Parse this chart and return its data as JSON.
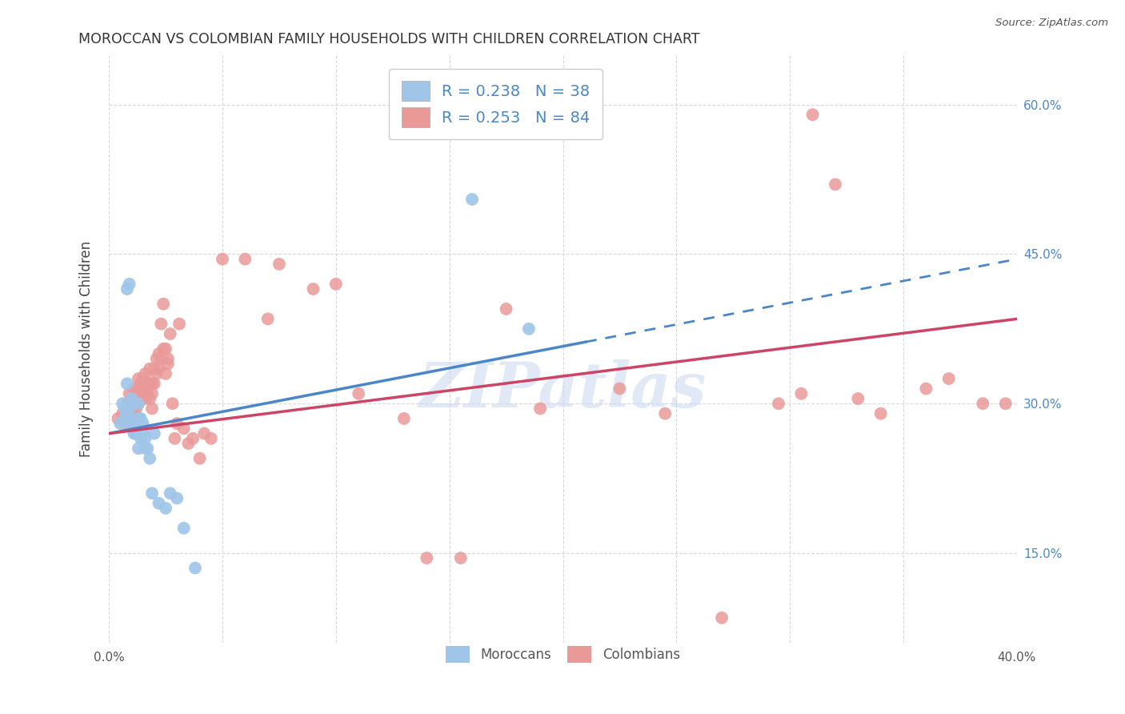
{
  "title": "MOROCCAN VS COLOMBIAN FAMILY HOUSEHOLDS WITH CHILDREN CORRELATION CHART",
  "source": "Source: ZipAtlas.com",
  "ylabel": "Family Households with Children",
  "xlabel": "",
  "xlim": [
    0.0,
    0.4
  ],
  "ylim": [
    0.06,
    0.65
  ],
  "yticks": [
    0.15,
    0.3,
    0.45,
    0.6
  ],
  "ytick_labels": [
    "15.0%",
    "30.0%",
    "45.0%",
    "60.0%"
  ],
  "background_color": "#ffffff",
  "grid_color": "#d8d8d8",
  "blue_color": "#9fc5e8",
  "pink_color": "#ea9999",
  "trendline_blue": "#4a86c8",
  "trendline_pink": "#cc4466",
  "legend_R_blue": "R = 0.238",
  "legend_N_blue": "N = 38",
  "legend_R_pink": "R = 0.253",
  "legend_N_pink": "N = 84",
  "watermark": "ZIPatlas",
  "trendline_blue_x0": 0.0,
  "trendline_blue_y0": 0.27,
  "trendline_blue_x1": 0.4,
  "trendline_blue_y1": 0.445,
  "trendline_blue_split": 0.21,
  "trendline_pink_x0": 0.0,
  "trendline_pink_y0": 0.27,
  "trendline_pink_x1": 0.4,
  "trendline_pink_y1": 0.385,
  "moroccan_x": [
    0.005,
    0.006,
    0.007,
    0.007,
    0.008,
    0.008,
    0.009,
    0.009,
    0.009,
    0.01,
    0.01,
    0.01,
    0.011,
    0.011,
    0.011,
    0.012,
    0.012,
    0.013,
    0.013,
    0.013,
    0.014,
    0.014,
    0.015,
    0.015,
    0.016,
    0.016,
    0.017,
    0.018,
    0.019,
    0.02,
    0.022,
    0.025,
    0.027,
    0.03,
    0.033,
    0.038,
    0.16,
    0.185
  ],
  "moroccan_y": [
    0.28,
    0.3,
    0.295,
    0.285,
    0.32,
    0.415,
    0.42,
    0.295,
    0.285,
    0.305,
    0.3,
    0.28,
    0.28,
    0.275,
    0.27,
    0.28,
    0.27,
    0.3,
    0.285,
    0.255,
    0.285,
    0.265,
    0.28,
    0.27,
    0.265,
    0.255,
    0.255,
    0.245,
    0.21,
    0.27,
    0.2,
    0.195,
    0.21,
    0.205,
    0.175,
    0.135,
    0.505,
    0.375
  ],
  "colombian_x": [
    0.004,
    0.006,
    0.007,
    0.008,
    0.008,
    0.009,
    0.009,
    0.01,
    0.01,
    0.01,
    0.011,
    0.011,
    0.011,
    0.012,
    0.012,
    0.013,
    0.013,
    0.013,
    0.014,
    0.014,
    0.015,
    0.015,
    0.015,
    0.016,
    0.016,
    0.016,
    0.017,
    0.017,
    0.018,
    0.018,
    0.018,
    0.019,
    0.019,
    0.019,
    0.02,
    0.02,
    0.021,
    0.021,
    0.022,
    0.022,
    0.023,
    0.023,
    0.024,
    0.024,
    0.025,
    0.025,
    0.026,
    0.026,
    0.027,
    0.028,
    0.029,
    0.03,
    0.031,
    0.033,
    0.035,
    0.037,
    0.04,
    0.042,
    0.045,
    0.05,
    0.06,
    0.07,
    0.075,
    0.09,
    0.1,
    0.11,
    0.13,
    0.14,
    0.155,
    0.175,
    0.19,
    0.225,
    0.245,
    0.27,
    0.295,
    0.305,
    0.31,
    0.32,
    0.33,
    0.34,
    0.36,
    0.37,
    0.385,
    0.395
  ],
  "colombian_y": [
    0.285,
    0.29,
    0.28,
    0.3,
    0.29,
    0.31,
    0.295,
    0.305,
    0.295,
    0.285,
    0.315,
    0.305,
    0.295,
    0.31,
    0.295,
    0.325,
    0.315,
    0.3,
    0.32,
    0.305,
    0.325,
    0.315,
    0.305,
    0.33,
    0.32,
    0.305,
    0.32,
    0.31,
    0.335,
    0.32,
    0.305,
    0.32,
    0.31,
    0.295,
    0.335,
    0.32,
    0.345,
    0.33,
    0.35,
    0.335,
    0.345,
    0.38,
    0.4,
    0.355,
    0.355,
    0.33,
    0.345,
    0.34,
    0.37,
    0.3,
    0.265,
    0.28,
    0.38,
    0.275,
    0.26,
    0.265,
    0.245,
    0.27,
    0.265,
    0.445,
    0.445,
    0.385,
    0.44,
    0.415,
    0.42,
    0.31,
    0.285,
    0.145,
    0.145,
    0.395,
    0.295,
    0.315,
    0.29,
    0.085,
    0.3,
    0.31,
    0.59,
    0.52,
    0.305,
    0.29,
    0.315,
    0.325,
    0.3,
    0.3
  ]
}
